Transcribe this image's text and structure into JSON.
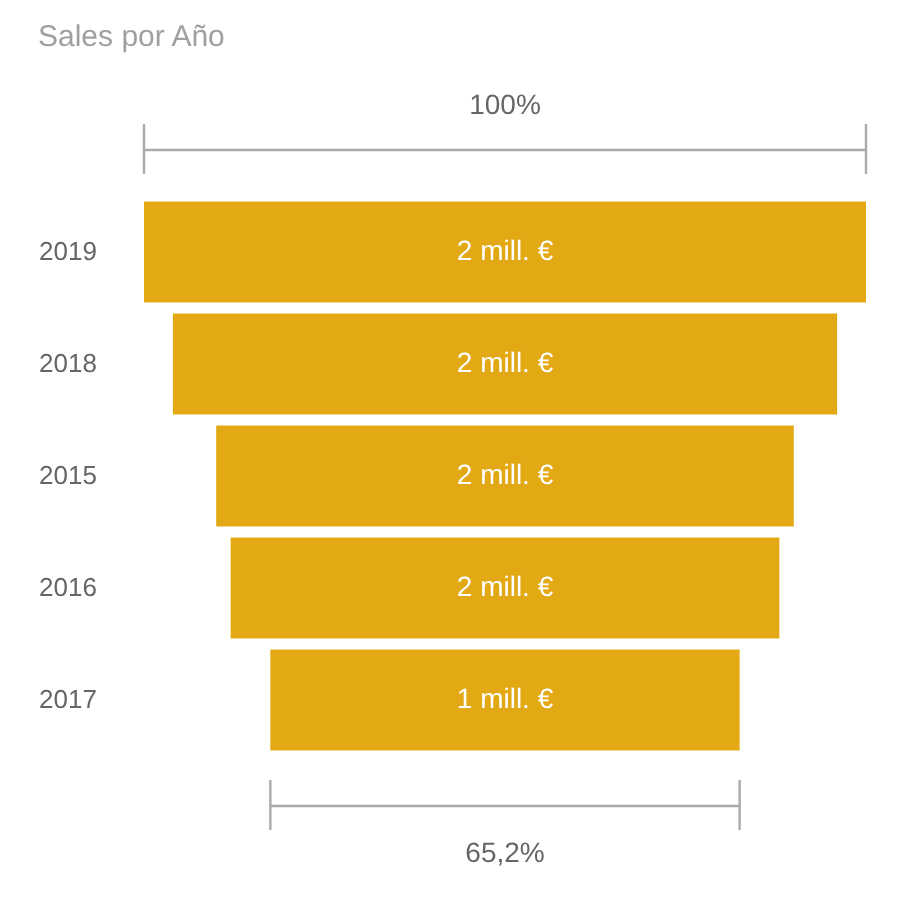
{
  "chart_data": {
    "type": "other",
    "title": "Sales por Año",
    "categories": [
      "2019",
      "2018",
      "2015",
      "2016",
      "2017"
    ],
    "values": [
      2,
      1.84,
      1.6,
      1.52,
      1.3
    ],
    "color": "#e2a914",
    "value_labels": [
      "2 mill. €",
      "2 mill. €",
      "2 mill. €",
      "2 mill. €",
      "1 mill. €"
    ],
    "annotations": [
      "100%",
      "65,2%"
    ]
  }
}
